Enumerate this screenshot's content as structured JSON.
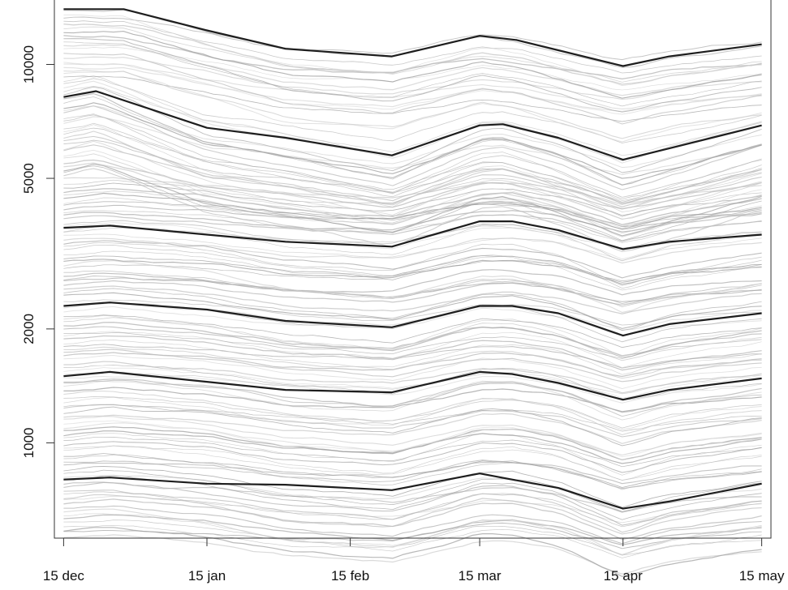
{
  "chart_data": {
    "type": "line",
    "title": "",
    "xlabel": "",
    "ylabel": "",
    "y_scale": "log",
    "ylim": [
      560,
      14800
    ],
    "xlim": [
      "2013-12-13",
      "2014-05-17"
    ],
    "grid": false,
    "legend": "none",
    "x_tick_labels": [
      "15 dec",
      "15 jan",
      "15 feb",
      "15 mar",
      "15 apr",
      "15 may"
    ],
    "x_tick_dates": [
      "2013-12-15",
      "2014-01-15",
      "2014-02-15",
      "2014-03-15",
      "2014-04-15",
      "2014-05-15"
    ],
    "y_tick_labels": [
      "1000",
      "2000",
      "5000",
      "10000"
    ],
    "y_tick_values": [
      1000,
      2000,
      5000,
      10000
    ],
    "colors": {
      "highlight_line": "#1e1e1e",
      "background_lines": "#9a9a9a",
      "axis": "#333333"
    },
    "highlight_series": [
      {
        "x": [
          "2013-12-15",
          "2013-12-28",
          "2014-01-15",
          "2014-02-01",
          "2014-02-24",
          "2014-03-15",
          "2014-03-23",
          "2014-04-01",
          "2014-04-15",
          "2014-04-25",
          "2014-05-15"
        ],
        "y": [
          14000,
          14000,
          12300,
          11000,
          10500,
          11900,
          11600,
          10900,
          9900,
          10500,
          11300
        ]
      },
      {
        "x": [
          "2013-12-15",
          "2013-12-22",
          "2014-01-15",
          "2014-02-01",
          "2014-02-24",
          "2014-03-15",
          "2014-03-20",
          "2014-04-01",
          "2014-04-15",
          "2014-04-25",
          "2014-05-15"
        ],
        "y": [
          8200,
          8500,
          6800,
          6400,
          5750,
          6900,
          6950,
          6400,
          5600,
          6000,
          6900
        ]
      },
      {
        "x": [
          "2013-12-15",
          "2013-12-25",
          "2014-01-15",
          "2014-02-01",
          "2014-02-24",
          "2014-03-15",
          "2014-03-22",
          "2014-04-01",
          "2014-04-15",
          "2014-04-25",
          "2014-05-15"
        ],
        "y": [
          3700,
          3750,
          3550,
          3400,
          3300,
          3850,
          3850,
          3650,
          3250,
          3400,
          3550
        ]
      },
      {
        "x": [
          "2013-12-15",
          "2013-12-25",
          "2014-01-15",
          "2014-02-01",
          "2014-02-24",
          "2014-03-15",
          "2014-03-22",
          "2014-04-01",
          "2014-04-15",
          "2014-04-25",
          "2014-05-15"
        ],
        "y": [
          2300,
          2350,
          2250,
          2100,
          2020,
          2300,
          2300,
          2200,
          1920,
          2060,
          2200
        ]
      },
      {
        "x": [
          "2013-12-15",
          "2013-12-25",
          "2014-01-15",
          "2014-02-01",
          "2014-02-24",
          "2014-03-15",
          "2014-03-22",
          "2014-04-01",
          "2014-04-15",
          "2014-04-25",
          "2014-05-15"
        ],
        "y": [
          1500,
          1540,
          1450,
          1380,
          1360,
          1540,
          1520,
          1440,
          1300,
          1380,
          1480
        ]
      },
      {
        "x": [
          "2013-12-15",
          "2013-12-25",
          "2014-01-15",
          "2014-02-01",
          "2014-02-24",
          "2014-03-15",
          "2014-03-22",
          "2014-04-01",
          "2014-04-15",
          "2014-04-25",
          "2014-05-15"
        ],
        "y": [
          800,
          810,
          780,
          775,
          750,
          830,
          800,
          760,
          670,
          700,
          780
        ]
      }
    ],
    "background_series_count": 150
  }
}
